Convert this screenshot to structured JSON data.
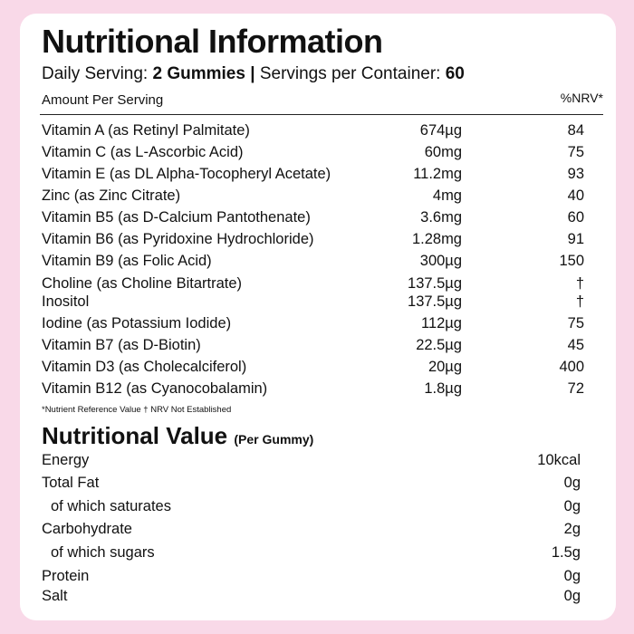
{
  "header": {
    "title": "Nutritional Information",
    "serving_label": "Daily Serving:",
    "serving_value": "2 Gummies",
    "separator": "|",
    "containers_label": "Servings per Container:",
    "containers_value": "60"
  },
  "table": {
    "columns": [
      "Amount Per Serving",
      "%NRV*"
    ],
    "rows": [
      [
        "Vitamin A (as Retinyl Palmitate)",
        "674µg",
        "84"
      ],
      [
        "Vitamin C (as L-Ascorbic Acid)",
        "60mg",
        "75"
      ],
      [
        "Vitamin E (as DL Alpha-Tocopheryl Acetate)",
        "11.2mg",
        "93"
      ],
      [
        "Zinc (as Zinc Citrate)",
        "4mg",
        "40"
      ],
      [
        "Vitamin B5 (as D-Calcium Pantothenate)",
        "3.6mg",
        "60"
      ],
      [
        "Vitamin B6 (as Pyridoxine Hydrochloride)",
        "1.28mg",
        "91"
      ],
      [
        "Vitamin B9 (as Folic Acid)",
        "300µg",
        "150"
      ],
      [
        "Choline (as Choline Bitartrate)",
        "137.5µg",
        "†"
      ],
      [
        "Inositol",
        "137.5µg",
        "†"
      ],
      [
        "Iodine (as Potassium Iodide)",
        "112µg",
        "75"
      ],
      [
        "Vitamin B7 (as D-Biotin)",
        "22.5µg",
        "45"
      ],
      [
        "Vitamin D3 (as Cholecalciferol)",
        "20µg",
        "400"
      ],
      [
        "Vitamin B12 (as Cyanocobalamin)",
        "1.8µg",
        "72"
      ]
    ],
    "footnote": "*Nutrient Reference Value † NRV Not Established"
  },
  "nutritional_value": {
    "title": "Nutritional Value",
    "subtitle": "(Per Gummy)",
    "rows": [
      [
        "Energy",
        "10kcal"
      ],
      [
        "Total Fat",
        "0g"
      ],
      [
        "of which saturates",
        "0g"
      ],
      [
        "Carbohydrate",
        "2g"
      ],
      [
        "of which sugars",
        "1.5g"
      ],
      [
        "Protein",
        "0g"
      ],
      [
        "Salt",
        "0g"
      ]
    ]
  }
}
